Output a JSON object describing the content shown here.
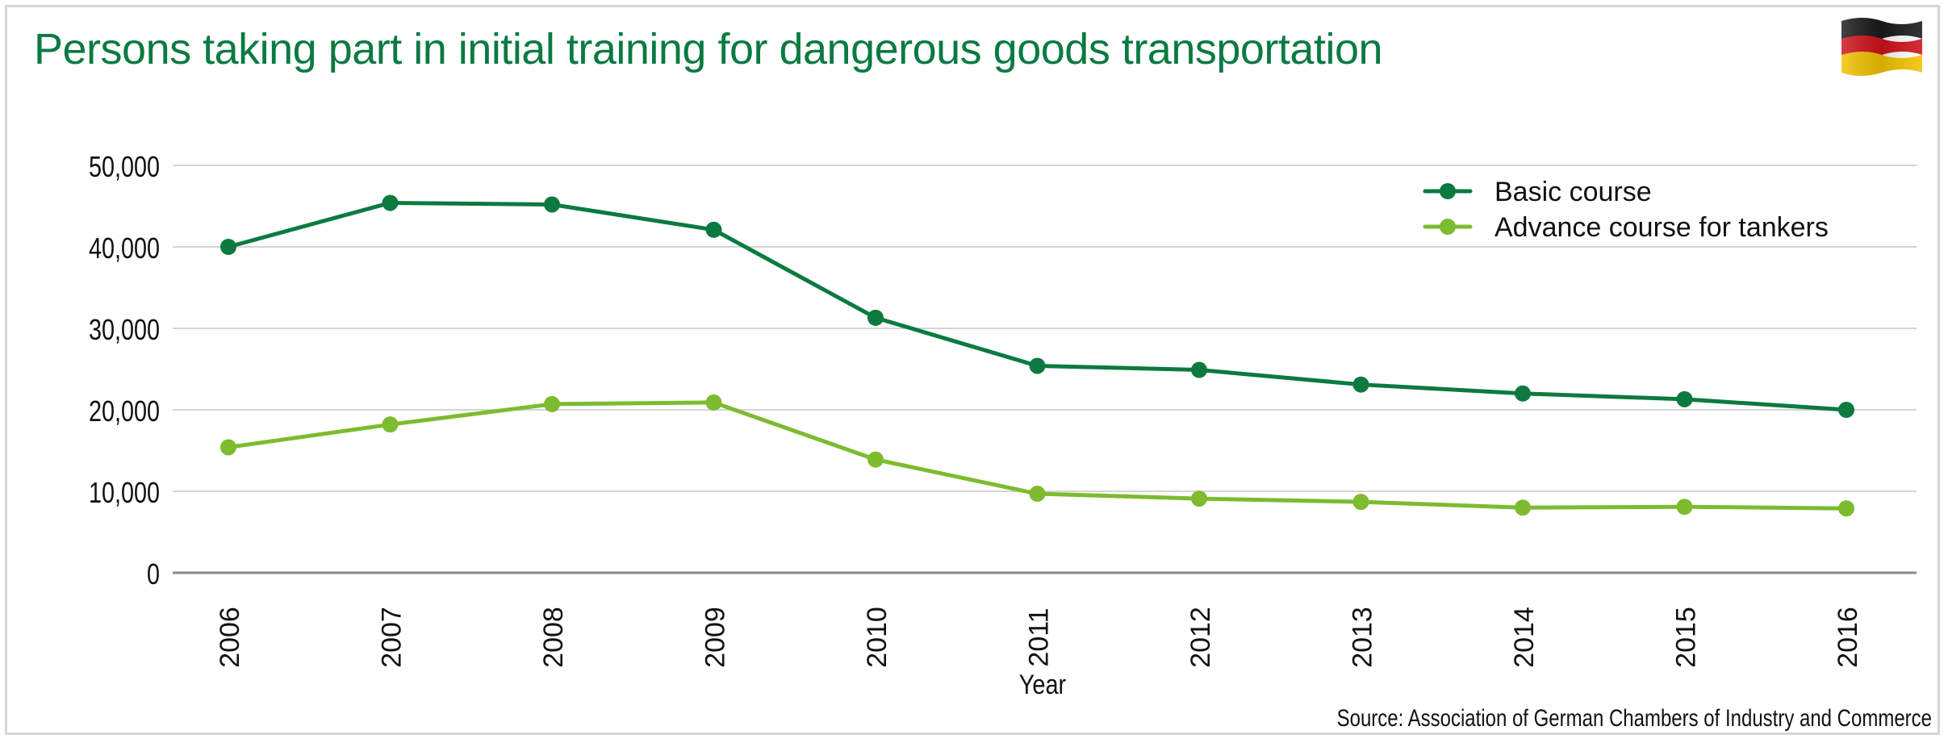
{
  "title": "Persons taking part in initial training for dangerous goods transportation",
  "source": "Source: Association of German Chambers of Industry and Commerce",
  "flag_icon": "germany-flag-icon",
  "colors": {
    "title": "#0a7a42",
    "basic": "#0c7a40",
    "advance": "#7dbb2f",
    "grid": "#d4d4d4",
    "axis": "#8a8a8a",
    "text": "#111111"
  },
  "chart_data": {
    "type": "line",
    "title": "Persons taking part in initial training for dangerous goods transportation",
    "xlabel": "Year",
    "ylabel": "",
    "x": [
      "2006",
      "2007",
      "2008",
      "2009",
      "2010",
      "2011",
      "2012",
      "2013",
      "2014",
      "2015",
      "2016"
    ],
    "ylim": [
      0,
      50000
    ],
    "yticks": [
      0,
      10000,
      20000,
      30000,
      40000,
      50000
    ],
    "ytick_labels": [
      "0",
      "10,000",
      "20,000",
      "30,000",
      "40,000",
      "50,000"
    ],
    "grid": true,
    "legend_position": "top-right",
    "series": [
      {
        "name": "Basic course",
        "color": "#0c7a40",
        "values": [
          40000,
          45400,
          45200,
          42100,
          31300,
          25400,
          24900,
          23100,
          22000,
          21300,
          20000
        ]
      },
      {
        "name": "Advance course for tankers",
        "color": "#7dbb2f",
        "values": [
          15400,
          18200,
          20700,
          20900,
          13900,
          9700,
          9100,
          8700,
          8000,
          8100,
          7900
        ]
      }
    ]
  }
}
